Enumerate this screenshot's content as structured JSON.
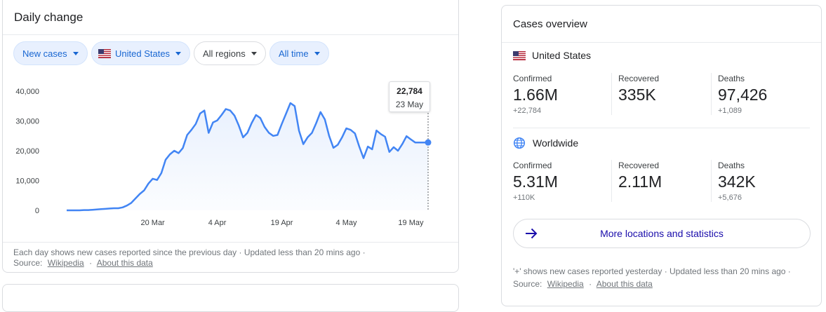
{
  "daily_change": {
    "title": "Daily change",
    "filters": [
      {
        "label": "New cases",
        "style": "blue"
      },
      {
        "label": "United States",
        "style": "blue",
        "flag": "us-flag-icon"
      },
      {
        "label": "All regions",
        "style": "plain"
      },
      {
        "label": "All time",
        "style": "blue"
      }
    ],
    "tooltip": {
      "value": "22,784",
      "date": "23 May"
    },
    "footer": {
      "line1": "Each day shows new cases reported since the previous day · Updated less than 20 mins ago ·",
      "source_label": "Source:",
      "source_link": "Wikipedia",
      "sep": "·",
      "about_link": "About this data"
    }
  },
  "chart_data": {
    "type": "area",
    "ylim": [
      0,
      40000
    ],
    "yticks": [
      {
        "label": "40,000",
        "v": 40000
      },
      {
        "label": "30,000",
        "v": 30000
      },
      {
        "label": "20,000",
        "v": 20000
      },
      {
        "label": "10,000",
        "v": 10000
      },
      {
        "label": "0",
        "v": 0
      }
    ],
    "xticks": [
      {
        "label": "20 Mar",
        "day": 20
      },
      {
        "label": "4 Apr",
        "day": 35
      },
      {
        "label": "19 Apr",
        "day": 50
      },
      {
        "label": "4 May",
        "day": 65
      },
      {
        "label": "19 May",
        "day": 80
      }
    ],
    "x_days": [
      0,
      1,
      2,
      3,
      4,
      5,
      6,
      7,
      8,
      9,
      10,
      11,
      12,
      13,
      14,
      15,
      16,
      17,
      18,
      19,
      20,
      21,
      22,
      23,
      24,
      25,
      26,
      27,
      28,
      29,
      30,
      31,
      32,
      33,
      34,
      35,
      36,
      37,
      38,
      39,
      40,
      41,
      42,
      43,
      44,
      45,
      46,
      47,
      48,
      49,
      50,
      51,
      52,
      53,
      54,
      55,
      56,
      57,
      58,
      59,
      60,
      61,
      62,
      63,
      64,
      65,
      66,
      67,
      68,
      69,
      70,
      71,
      72,
      73,
      74,
      75,
      76,
      77,
      78,
      79,
      80,
      81,
      82,
      83,
      84
    ],
    "values": [
      0,
      0,
      0,
      0,
      100,
      100,
      200,
      300,
      400,
      500,
      600,
      700,
      700,
      1000,
      1600,
      2500,
      4000,
      5500,
      6700,
      9000,
      10600,
      10200,
      12500,
      17000,
      18800,
      20000,
      19200,
      20900,
      25300,
      27000,
      29000,
      32500,
      33500,
      26000,
      29500,
      30200,
      32000,
      34000,
      33500,
      31800,
      28500,
      24500,
      26000,
      29300,
      32000,
      31000,
      28000,
      26000,
      25000,
      25300,
      29000,
      32500,
      36000,
      35000,
      26700,
      22200,
      24500,
      26000,
      29300,
      33000,
      30500,
      25000,
      21000,
      22000,
      24500,
      27500,
      27000,
      25800,
      21400,
      17500,
      21400,
      20500,
      26800,
      25600,
      24700,
      19600,
      21200,
      20000,
      22200,
      24900,
      23800,
      22784,
      22784,
      22784,
      22784
    ],
    "highlight": {
      "day": 84,
      "value": 22784
    },
    "grid": false,
    "legend": "none"
  },
  "cases_overview": {
    "title": "Cases overview",
    "regions": [
      {
        "name": "United States",
        "icon": "us-flag-icon",
        "stats": [
          {
            "label": "Confirmed",
            "value": "1.66M",
            "delta": "+22,784"
          },
          {
            "label": "Recovered",
            "value": "335K",
            "delta": ""
          },
          {
            "label": "Deaths",
            "value": "97,426",
            "delta": "+1,089"
          }
        ]
      },
      {
        "name": "Worldwide",
        "icon": "globe-icon",
        "stats": [
          {
            "label": "Confirmed",
            "value": "5.31M",
            "delta": "+110K"
          },
          {
            "label": "Recovered",
            "value": "2.11M",
            "delta": ""
          },
          {
            "label": "Deaths",
            "value": "342K",
            "delta": "+5,676"
          }
        ]
      }
    ],
    "more_button": "More locations and statistics",
    "footer": {
      "line1": "'+' shows new cases reported yesterday · Updated less than 20 mins ago ·",
      "source_label": "Source:",
      "source_link": "Wikipedia",
      "sep": "·",
      "about_link": "About this data"
    }
  },
  "colors": {
    "accent": "#4285f4",
    "chip_bg": "#e8f0fe",
    "chip_text": "#1967d2",
    "link": "#1a0dab"
  }
}
